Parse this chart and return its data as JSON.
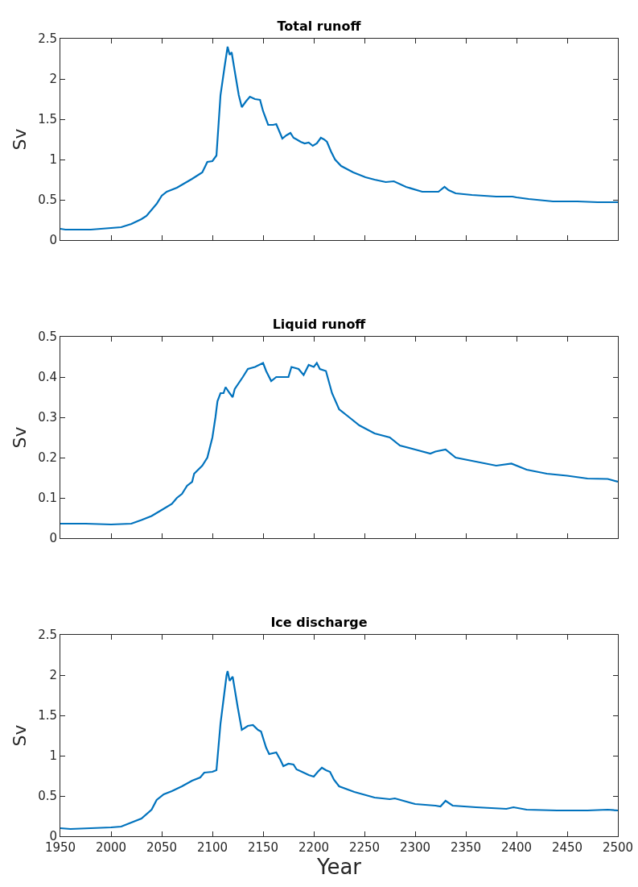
{
  "chart_data": [
    {
      "type": "line",
      "title": "Total runoff",
      "ylabel": "Sv",
      "xlim": [
        1950,
        2500
      ],
      "xticks": [
        1950,
        2000,
        2050,
        2100,
        2150,
        2200,
        2250,
        2300,
        2350,
        2400,
        2450,
        2500
      ],
      "ylim": [
        0,
        2.5
      ],
      "yticks": [
        0,
        0.5,
        1,
        1.5,
        2,
        2.5
      ],
      "tick_labels": "y",
      "x": [
        1950,
        1955,
        1980,
        2000,
        2010,
        2020,
        2030,
        2035,
        2045,
        2050,
        2055,
        2065,
        2080,
        2090,
        2095,
        2100,
        2104,
        2108,
        2112,
        2115,
        2117,
        2119,
        2122,
        2126,
        2129,
        2133,
        2137,
        2142,
        2147,
        2150,
        2155,
        2160,
        2163,
        2166,
        2169,
        2173,
        2177,
        2180,
        2183,
        2187,
        2191,
        2195,
        2199,
        2203,
        2207,
        2210,
        2213,
        2217,
        2221,
        2227,
        2239,
        2251,
        2260,
        2271,
        2279,
        2291,
        2307,
        2323,
        2329,
        2333,
        2340,
        2356,
        2380,
        2396,
        2400,
        2412,
        2436,
        2460,
        2480,
        2500
      ],
      "series": [
        {
          "color": "#0072bd",
          "values": [
            0.14,
            0.13,
            0.13,
            0.15,
            0.16,
            0.2,
            0.26,
            0.3,
            0.45,
            0.55,
            0.6,
            0.65,
            0.76,
            0.84,
            0.97,
            0.98,
            1.05,
            1.8,
            2.15,
            2.4,
            2.3,
            2.33,
            2.1,
            1.8,
            1.65,
            1.72,
            1.78,
            1.75,
            1.74,
            1.6,
            1.43,
            1.43,
            1.44,
            1.35,
            1.26,
            1.3,
            1.33,
            1.27,
            1.25,
            1.22,
            1.2,
            1.21,
            1.17,
            1.2,
            1.27,
            1.25,
            1.22,
            1.1,
            1.0,
            0.92,
            0.84,
            0.78,
            0.75,
            0.72,
            0.73,
            0.66,
            0.6,
            0.6,
            0.66,
            0.62,
            0.58,
            0.56,
            0.54,
            0.54,
            0.53,
            0.51,
            0.48,
            0.48,
            0.47,
            0.47
          ]
        }
      ]
    },
    {
      "type": "line",
      "title": "Liquid runoff",
      "ylabel": "Sv",
      "xlim": [
        1950,
        2500
      ],
      "xticks": [
        1950,
        2000,
        2050,
        2100,
        2150,
        2200,
        2250,
        2300,
        2350,
        2400,
        2450,
        2500
      ],
      "ylim": [
        0,
        0.5
      ],
      "yticks": [
        0,
        0.1,
        0.2,
        0.3,
        0.4,
        0.5
      ],
      "tick_labels": "y",
      "x": [
        1950,
        1975,
        2000,
        2020,
        2030,
        2040,
        2050,
        2060,
        2065,
        2070,
        2075,
        2080,
        2082,
        2090,
        2095,
        2100,
        2103,
        2105,
        2108,
        2111,
        2113,
        2117,
        2120,
        2122,
        2130,
        2135,
        2142,
        2150,
        2153,
        2158,
        2163,
        2170,
        2175,
        2178,
        2185,
        2190,
        2195,
        2200,
        2203,
        2206,
        2212,
        2218,
        2225,
        2235,
        2245,
        2260,
        2275,
        2285,
        2300,
        2315,
        2320,
        2330,
        2340,
        2360,
        2380,
        2395,
        2410,
        2430,
        2450,
        2470,
        2490,
        2500
      ],
      "series": [
        {
          "color": "#0072bd",
          "values": [
            0.036,
            0.036,
            0.034,
            0.036,
            0.045,
            0.055,
            0.07,
            0.085,
            0.1,
            0.11,
            0.13,
            0.14,
            0.16,
            0.18,
            0.2,
            0.25,
            0.3,
            0.34,
            0.36,
            0.36,
            0.375,
            0.36,
            0.35,
            0.37,
            0.4,
            0.42,
            0.425,
            0.435,
            0.415,
            0.39,
            0.4,
            0.4,
            0.4,
            0.425,
            0.42,
            0.405,
            0.43,
            0.425,
            0.435,
            0.42,
            0.415,
            0.36,
            0.32,
            0.3,
            0.28,
            0.26,
            0.25,
            0.23,
            0.22,
            0.21,
            0.215,
            0.22,
            0.2,
            0.19,
            0.18,
            0.185,
            0.17,
            0.16,
            0.155,
            0.148,
            0.147,
            0.14
          ]
        }
      ]
    },
    {
      "type": "line",
      "title": "Ice discharge",
      "xlabel": "Year",
      "ylabel": "Sv",
      "xlim": [
        1950,
        2500
      ],
      "xticks": [
        1950,
        2000,
        2050,
        2100,
        2150,
        2200,
        2250,
        2300,
        2350,
        2400,
        2450,
        2500
      ],
      "ylim": [
        0,
        2.5
      ],
      "yticks": [
        0,
        0.5,
        1,
        1.5,
        2,
        2.5
      ],
      "x": [
        1950,
        1960,
        2000,
        2010,
        2020,
        2030,
        2040,
        2045,
        2052,
        2060,
        2070,
        2080,
        2088,
        2092,
        2100,
        2104,
        2108,
        2111,
        2114,
        2115,
        2117,
        2120,
        2125,
        2129,
        2135,
        2140,
        2145,
        2148,
        2153,
        2156,
        2163,
        2167,
        2170,
        2175,
        2180,
        2183,
        2190,
        2195,
        2200,
        2204,
        2208,
        2212,
        2216,
        2220,
        2225,
        2240,
        2260,
        2275,
        2280,
        2300,
        2320,
        2325,
        2330,
        2337,
        2360,
        2390,
        2397,
        2410,
        2440,
        2470,
        2490,
        2500
      ],
      "series": [
        {
          "color": "#0072bd",
          "values": [
            0.1,
            0.09,
            0.11,
            0.12,
            0.17,
            0.22,
            0.33,
            0.45,
            0.52,
            0.56,
            0.62,
            0.69,
            0.73,
            0.79,
            0.8,
            0.82,
            1.4,
            1.7,
            2.0,
            2.05,
            1.93,
            1.98,
            1.6,
            1.32,
            1.37,
            1.38,
            1.32,
            1.3,
            1.1,
            1.02,
            1.04,
            0.95,
            0.87,
            0.9,
            0.89,
            0.83,
            0.79,
            0.76,
            0.74,
            0.8,
            0.85,
            0.82,
            0.8,
            0.7,
            0.62,
            0.55,
            0.48,
            0.46,
            0.47,
            0.4,
            0.38,
            0.37,
            0.44,
            0.38,
            0.36,
            0.34,
            0.36,
            0.33,
            0.32,
            0.32,
            0.33,
            0.32
          ]
        }
      ]
    }
  ]
}
